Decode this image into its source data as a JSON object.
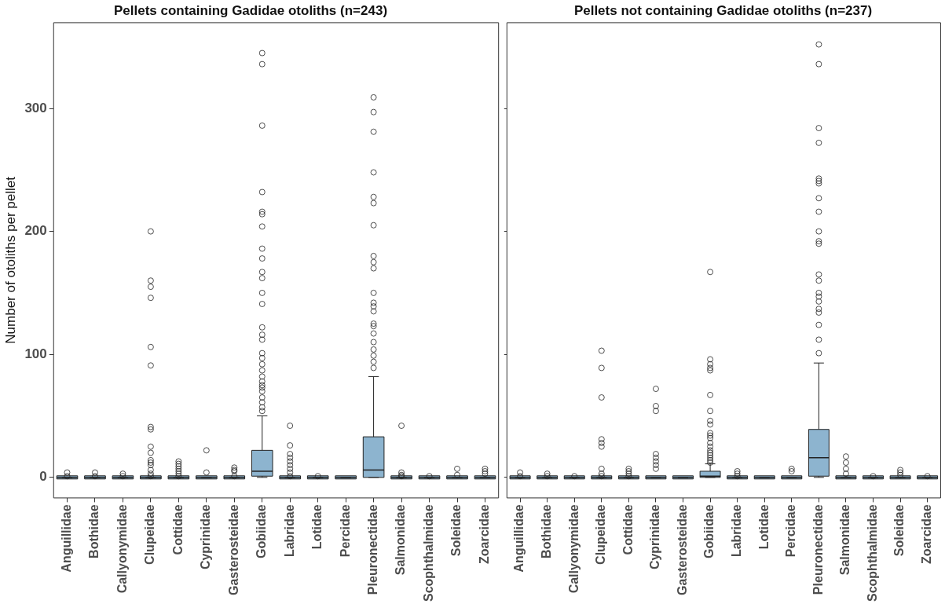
{
  "chart_data": [
    {
      "type": "box",
      "title": "Pellets containing Gadidae otoliths (n=243)",
      "ylabel": "Number of otoliths per pellet",
      "color": "#8db4cf",
      "marker": "circle",
      "grid": false,
      "categories": [
        "Anguillidae",
        "Bothidae",
        "Callyonymidae",
        "Clupeidae",
        "Cottidae",
        "Cyprinidae",
        "Gasterosteidae",
        "Gobiidae",
        "Labridae",
        "Lotidae",
        "Percidae",
        "Pleuronectidae",
        "Salmonidae",
        "Scophthalmidae",
        "Soleidae",
        "Zoarcidae"
      ],
      "ylim": [
        -17,
        370
      ],
      "yticks": [
        0,
        100,
        200,
        300
      ],
      "boxes": [
        {
          "low": 0,
          "q1": 0,
          "median": 0,
          "q3": 0,
          "high": 0,
          "outliers": [
            4,
            1
          ]
        },
        {
          "low": 0,
          "q1": 0,
          "median": 0,
          "q3": 0,
          "high": 0,
          "outliers": [
            4,
            1
          ]
        },
        {
          "low": 0,
          "q1": 0,
          "median": 0,
          "q3": 0,
          "high": 0,
          "outliers": [
            3,
            1
          ]
        },
        {
          "low": 0,
          "q1": 0,
          "median": 0,
          "q3": 0,
          "high": 0,
          "outliers": [
            200,
            160,
            155,
            146,
            106,
            91,
            41,
            39,
            25,
            20,
            14,
            12,
            10,
            6,
            3,
            1
          ]
        },
        {
          "low": 0,
          "q1": 0,
          "median": 0,
          "q3": 0,
          "high": 0,
          "outliers": [
            13,
            11,
            9,
            7,
            5,
            3,
            1
          ]
        },
        {
          "low": 0,
          "q1": 0,
          "median": 0,
          "q3": 0,
          "high": 0,
          "outliers": [
            22,
            4
          ]
        },
        {
          "low": 0,
          "q1": 0,
          "median": 0,
          "q3": 0,
          "high": 0,
          "outliers": [
            8,
            6,
            5,
            1
          ]
        },
        {
          "low": 0,
          "q1": 1,
          "median": 5,
          "q3": 22,
          "high": 50,
          "outliers": [
            345,
            336,
            286,
            232,
            216,
            214,
            204,
            186,
            178,
            167,
            162,
            150,
            141,
            122,
            116,
            112,
            101,
            97,
            92,
            87,
            82,
            78,
            75,
            73,
            70,
            65,
            61,
            57,
            54
          ]
        },
        {
          "low": 0,
          "q1": 0,
          "median": 0,
          "q3": 0,
          "high": 0,
          "outliers": [
            42,
            26,
            19,
            16,
            13,
            10,
            7,
            4,
            1
          ]
        },
        {
          "low": 0,
          "q1": 0,
          "median": 0,
          "q3": 0,
          "high": 0,
          "outliers": [
            1
          ]
        },
        {
          "low": 0,
          "q1": 0,
          "median": 0,
          "q3": 0,
          "high": 0
        },
        {
          "low": 0,
          "q1": 0,
          "median": 6,
          "q3": 33,
          "high": 82,
          "outliers": [
            309,
            297,
            281,
            248,
            228,
            223,
            205,
            180,
            175,
            170,
            150,
            142,
            139,
            135,
            125,
            123,
            117,
            110,
            104,
            99,
            94,
            89
          ]
        },
        {
          "low": 0,
          "q1": 0,
          "median": 0,
          "q3": 0,
          "high": 0,
          "outliers": [
            42,
            4,
            2,
            1
          ]
        },
        {
          "low": 0,
          "q1": 0,
          "median": 0,
          "q3": 0,
          "high": 0,
          "outliers": [
            1
          ]
        },
        {
          "low": 0,
          "q1": 0,
          "median": 0,
          "q3": 0,
          "high": 0,
          "outliers": [
            7,
            2
          ]
        },
        {
          "low": 0,
          "q1": 0,
          "median": 0,
          "q3": 0,
          "high": 0,
          "outliers": [
            7,
            5,
            3
          ]
        }
      ]
    },
    {
      "type": "box",
      "title": "Pellets not containing Gadidae otoliths (n=237)",
      "color": "#8db4cf",
      "marker": "circle",
      "grid": false,
      "tick_labels": "x",
      "categories": [
        "Anguillidae",
        "Bothidae",
        "Callyonymidae",
        "Clupeidae",
        "Cottidae",
        "Cyprinidae",
        "Gasterosteidae",
        "Gobiidae",
        "Labridae",
        "Lotidae",
        "Percidae",
        "Pleuronectidae",
        "Salmonidae",
        "Scophthalmidae",
        "Soleidae",
        "Zoarcidae"
      ],
      "ylim": [
        -17,
        370
      ],
      "yticks": [
        0,
        100,
        200,
        300
      ],
      "boxes": [
        {
          "low": 0,
          "q1": 0,
          "median": 0,
          "q3": 0,
          "high": 0,
          "outliers": [
            4,
            1
          ]
        },
        {
          "low": 0,
          "q1": 0,
          "median": 0,
          "q3": 0,
          "high": 0,
          "outliers": [
            3,
            1
          ]
        },
        {
          "low": 0,
          "q1": 0,
          "median": 0,
          "q3": 0,
          "high": 0,
          "outliers": [
            1
          ]
        },
        {
          "low": 0,
          "q1": 0,
          "median": 0,
          "q3": 0,
          "high": 0,
          "outliers": [
            103,
            89,
            65,
            31,
            28,
            25,
            7,
            3,
            1
          ]
        },
        {
          "low": 0,
          "q1": 0,
          "median": 0,
          "q3": 0,
          "high": 0,
          "outliers": [
            7,
            5,
            3,
            1
          ]
        },
        {
          "low": 0,
          "q1": 0,
          "median": 0,
          "q3": 0,
          "high": 0,
          "outliers": [
            72,
            58,
            54,
            19,
            16,
            13,
            10,
            7
          ]
        },
        {
          "low": 0,
          "q1": 0,
          "median": 0,
          "q3": 0,
          "high": 0
        },
        {
          "low": 0,
          "q1": 0,
          "median": 1,
          "q3": 5,
          "high": 11,
          "outliers": [
            167,
            96,
            92,
            89,
            87,
            67,
            54,
            46,
            43,
            36,
            34,
            32,
            28,
            25,
            22,
            20,
            18,
            16,
            14,
            12
          ]
        },
        {
          "low": 0,
          "q1": 0,
          "median": 0,
          "q3": 0,
          "high": 0,
          "outliers": [
            5,
            3,
            1
          ]
        },
        {
          "low": 0,
          "q1": 0,
          "median": 0,
          "q3": 0,
          "high": 0
        },
        {
          "low": 0,
          "q1": 0,
          "median": 0,
          "q3": 0,
          "high": 0,
          "outliers": [
            7,
            5
          ]
        },
        {
          "low": 0,
          "q1": 1,
          "median": 16,
          "q3": 39,
          "high": 93,
          "outliers": [
            352,
            336,
            284,
            272,
            243,
            241,
            239,
            227,
            216,
            200,
            192,
            190,
            165,
            160,
            150,
            147,
            143,
            137,
            134,
            124,
            112,
            101
          ]
        },
        {
          "low": 0,
          "q1": 0,
          "median": 0,
          "q3": 0,
          "high": 0,
          "outliers": [
            17,
            12,
            7,
            3
          ]
        },
        {
          "low": 0,
          "q1": 0,
          "median": 0,
          "q3": 0,
          "high": 0,
          "outliers": [
            1
          ]
        },
        {
          "low": 0,
          "q1": 0,
          "median": 0,
          "q3": 0,
          "high": 0,
          "outliers": [
            6,
            4,
            2
          ]
        },
        {
          "low": 0,
          "q1": 0,
          "median": 0,
          "q3": 0,
          "high": 0,
          "outliers": [
            1
          ]
        }
      ]
    }
  ]
}
